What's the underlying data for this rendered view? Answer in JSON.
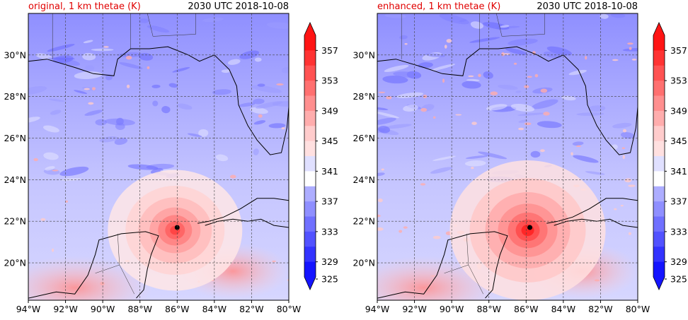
{
  "colors": {
    "accent": "#e00000",
    "scale": [
      "#1414ff",
      "#3333ff",
      "#5252ff",
      "#7070ff",
      "#8f8fff",
      "#adadff",
      "#cccccc",
      "#e0e0ff",
      "#ffe0e0",
      "#ffcccc",
      "#ffadad",
      "#ff8f8f",
      "#ff7070",
      "#ff5252",
      "#ff3333",
      "#ff1414"
    ]
  },
  "panels": [
    {
      "title": "original, 1 km thetae (K)",
      "time": "2030 UTC 2018-10-08",
      "center_lon": -86.0,
      "center_lat": 21.7
    },
    {
      "title": "enhanced, 1 km thetae (K)",
      "time": "2030 UTC 2018-10-08",
      "center_lon": -85.8,
      "center_lat": 21.7
    }
  ],
  "lon_ticks": [
    "94°W",
    "92°W",
    "90°W",
    "88°W",
    "86°W",
    "84°W",
    "82°W",
    "80°W"
  ],
  "lat_ticks": [
    "30°N",
    "28°N",
    "26°N",
    "24°N",
    "22°N",
    "20°N"
  ],
  "colorbar_ticks": [
    "357",
    "353",
    "349",
    "345",
    "341",
    "337",
    "333",
    "329",
    "325"
  ],
  "map_extent": {
    "lon": [
      -94,
      -80
    ],
    "lat": [
      18.2,
      32
    ]
  }
}
